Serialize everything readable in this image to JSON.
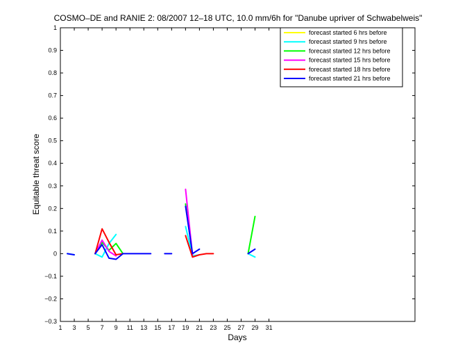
{
  "chart_data": {
    "type": "line",
    "title": "COSMO–DE and RANIE 2: 08/2007 12–18 UTC, 10.0 mm/6h for \"Danube upriver of Schwabelweis\"",
    "xlabel": "Days",
    "ylabel": "Equitable threat score",
    "xlim": [
      1,
      52
    ],
    "ylim": [
      -0.3,
      1
    ],
    "xticks": [
      1,
      3,
      5,
      7,
      9,
      11,
      13,
      15,
      17,
      19,
      21,
      23,
      25,
      27,
      29,
      31
    ],
    "yticks": [
      -0.3,
      -0.2,
      -0.1,
      0,
      0.1,
      0.2,
      0.3,
      0.4,
      0.5,
      0.6,
      0.7,
      0.8,
      0.9,
      1
    ],
    "ytick_labels": [
      "−0.3",
      "−0.2",
      "−0.1",
      "0",
      "0.1",
      "0.2",
      "0.3",
      "0.4",
      "0.5",
      "0.6",
      "0.7",
      "0.8",
      "0.9",
      "1"
    ],
    "grid": false,
    "legend_position": "top-right",
    "series": [
      {
        "name": "forecast started 6 hrs before",
        "color": "#ffff00",
        "segments": []
      },
      {
        "name": "forecast started 9 hrs before",
        "color": "#00ffff",
        "segments": [
          [
            [
              2,
              0
            ],
            [
              3,
              -0.005
            ]
          ],
          [
            [
              6,
              0
            ],
            [
              7,
              -0.015
            ],
            [
              8,
              0.045
            ],
            [
              9,
              0.085
            ]
          ],
          [
            [
              19,
              0.12
            ],
            [
              20,
              -0.01
            ],
            [
              21,
              -0.005
            ]
          ],
          [
            [
              28,
              0
            ],
            [
              29,
              -0.015
            ]
          ]
        ]
      },
      {
        "name": "forecast started 12 hrs before",
        "color": "#00ff00",
        "segments": [
          [
            [
              6,
              0
            ],
            [
              7,
              0.05
            ],
            [
              8,
              0.015
            ],
            [
              9,
              0.045
            ],
            [
              10,
              0
            ]
          ],
          [
            [
              19,
              0.22
            ],
            [
              20,
              -0.005
            ]
          ],
          [
            [
              28,
              0
            ],
            [
              29,
              0.165
            ]
          ]
        ]
      },
      {
        "name": "forecast started 15 hrs before",
        "color": "#ff00ff",
        "segments": [
          [
            [
              6,
              0
            ],
            [
              7,
              0.06
            ],
            [
              8,
              0.01
            ],
            [
              9,
              -0.01
            ]
          ],
          [
            [
              19,
              0.285
            ],
            [
              20,
              -0.005
            ]
          ]
        ]
      },
      {
        "name": "forecast started 18 hrs before",
        "color": "#ff0000",
        "segments": [
          [
            [
              6,
              0
            ],
            [
              7,
              0.11
            ],
            [
              8,
              0.05
            ],
            [
              9,
              -0.005
            ],
            [
              10,
              0
            ]
          ],
          [
            [
              19,
              0.08
            ],
            [
              20,
              -0.015
            ],
            [
              21,
              -0.005
            ],
            [
              22,
              0
            ],
            [
              23,
              0
            ]
          ]
        ]
      },
      {
        "name": "forecast started 21 hrs before",
        "color": "#0000ff",
        "segments": [
          [
            [
              2,
              0
            ],
            [
              3,
              -0.005
            ]
          ],
          [
            [
              6,
              0
            ],
            [
              7,
              0.04
            ],
            [
              8,
              -0.02
            ],
            [
              9,
              -0.025
            ],
            [
              10,
              0
            ],
            [
              11,
              0
            ],
            [
              12,
              0
            ],
            [
              13,
              0
            ],
            [
              14,
              0
            ]
          ],
          [
            [
              16,
              0
            ],
            [
              17,
              0
            ]
          ],
          [
            [
              19,
              0.21
            ],
            [
              20,
              0
            ],
            [
              21,
              0.02
            ]
          ],
          [
            [
              28,
              0
            ],
            [
              29,
              0.02
            ]
          ]
        ]
      }
    ]
  }
}
